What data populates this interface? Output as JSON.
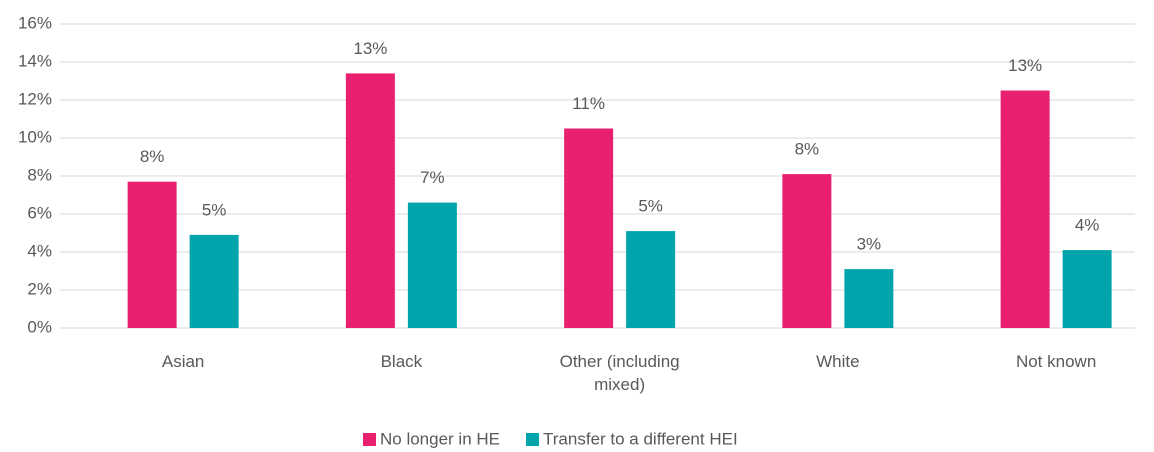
{
  "chart_data": {
    "type": "bar",
    "categories": [
      "Asian",
      "Black",
      "Other (including mixed)",
      "White",
      "Not known"
    ],
    "series": [
      {
        "name": "No longer in HE",
        "color": "#e8206f",
        "values": [
          7.7,
          13.4,
          10.5,
          8.1,
          12.5
        ],
        "value_labels": [
          "8%",
          "13%",
          "11%",
          "8%",
          "13%"
        ]
      },
      {
        "name": "Transfer to a different HEI",
        "color": "#00a5ac",
        "values": [
          4.9,
          6.6,
          5.1,
          3.1,
          4.1
        ],
        "value_labels": [
          "5%",
          "7%",
          "5%",
          "3%",
          "4%"
        ]
      }
    ],
    "ylim": [
      0,
      16
    ],
    "yticks": [
      {
        "value": 0,
        "label": "0%"
      },
      {
        "value": 2,
        "label": "2%"
      },
      {
        "value": 4,
        "label": "4%"
      },
      {
        "value": 6,
        "label": "6%"
      },
      {
        "value": 8,
        "label": "8%"
      },
      {
        "value": 10,
        "label": "10%"
      },
      {
        "value": 12,
        "label": "12%"
      },
      {
        "value": 14,
        "label": "14%"
      },
      {
        "value": 16,
        "label": "16%"
      }
    ],
    "grid": true,
    "legend": "bottom"
  }
}
